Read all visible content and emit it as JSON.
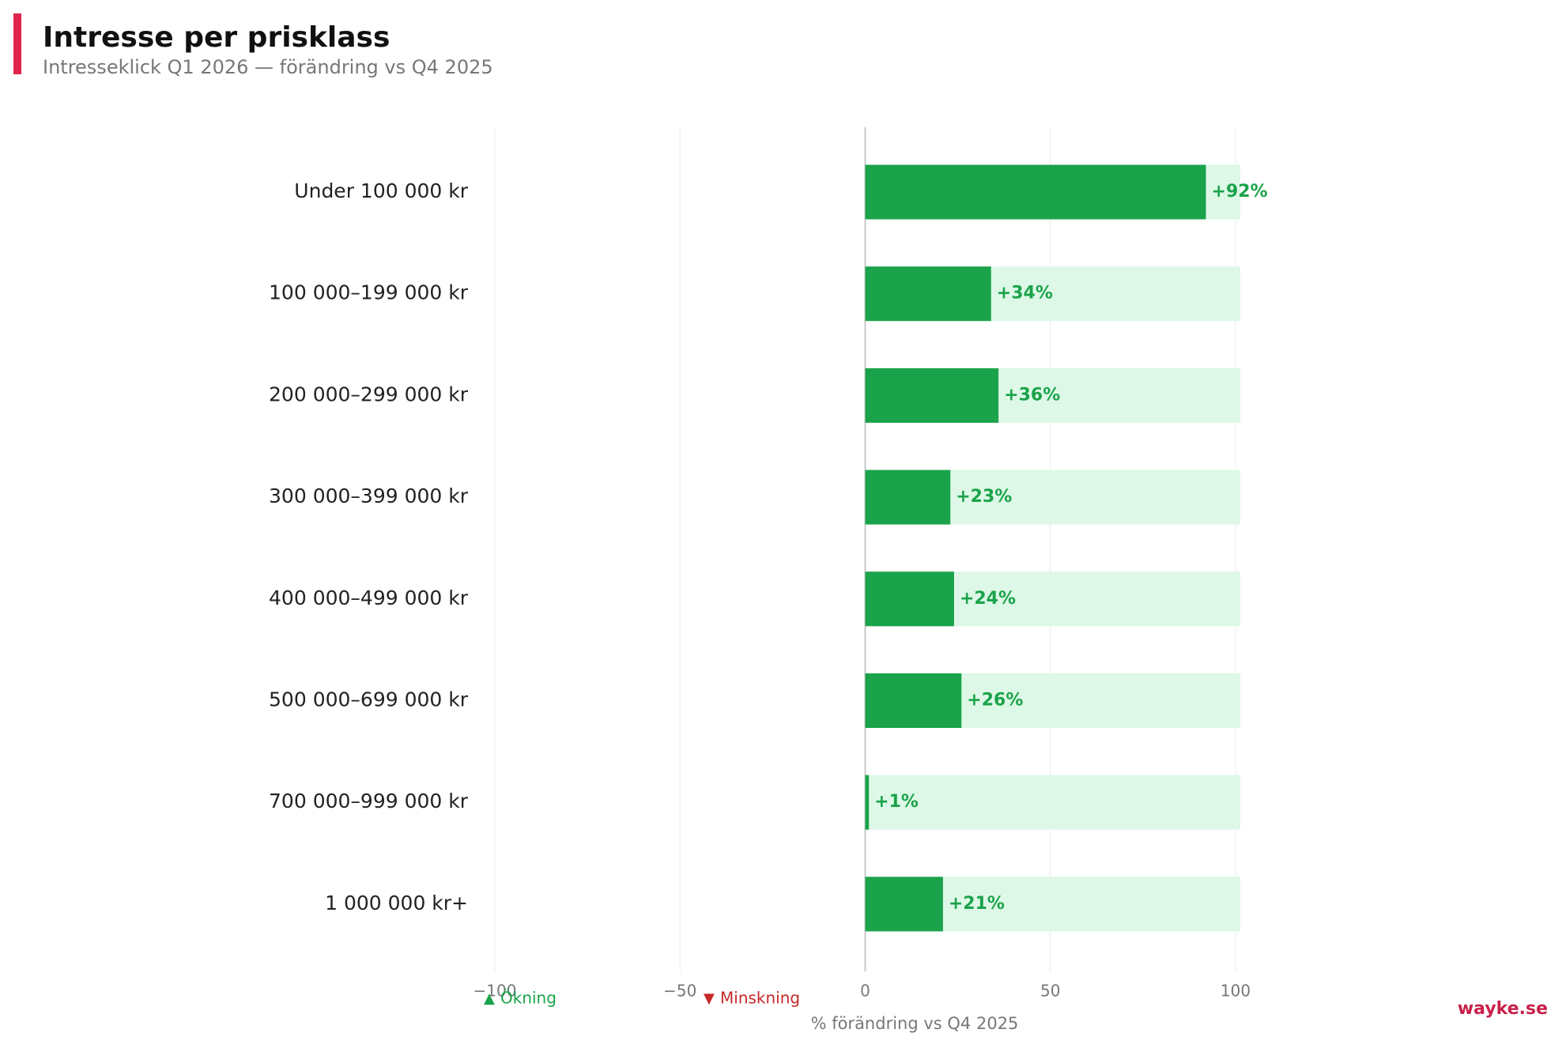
{
  "chart_data": {
    "type": "bar",
    "orientation": "horizontal",
    "title": "Intresse per prisklass",
    "subtitle": "Intresseklick Q1 2026 — förändring vs Q4 2025",
    "x_label": "% förändring vs Q4 2025",
    "categories": [
      "Under 100 000 kr",
      "100 000–199 000 kr",
      "200 000–299 000 kr",
      "300 000–399 000 kr",
      "400 000–499 000 kr",
      "500 000–699 000 kr",
      "700 000–999 000 kr",
      "1 000 000 kr+"
    ],
    "values": [
      92,
      34,
      36,
      23,
      24,
      26,
      1,
      21
    ],
    "value_labels": [
      "+92%",
      "+34%",
      "+36%",
      "+23%",
      "+24%",
      "+26%",
      "+1%",
      "+21%"
    ],
    "xlim": [
      -100,
      100
    ],
    "xticks": [
      {
        "value": -100,
        "label": "−100"
      },
      {
        "value": -50,
        "label": "−50"
      },
      0,
      50,
      100
    ],
    "grid": true,
    "legend": [
      {
        "label": "Ökning",
        "color": "#1aa34a"
      },
      {
        "label": "Minskning",
        "color": "#c62828"
      }
    ],
    "source": "wayke.se"
  }
}
